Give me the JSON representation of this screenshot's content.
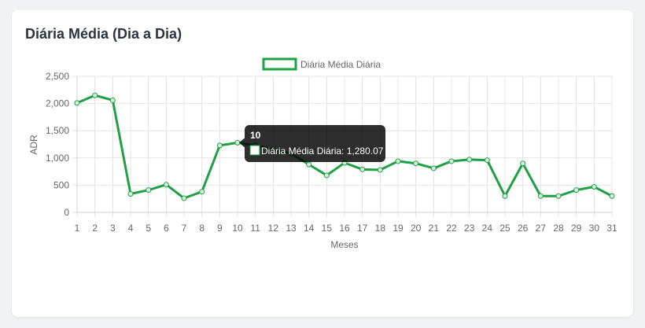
{
  "card": {
    "title": "Diária Média (Dia a Dia)"
  },
  "chart_data": {
    "type": "line",
    "legend": {
      "label": "Diária Média Diária",
      "position": "top"
    },
    "xlabel": "Meses",
    "ylabel": "ADR",
    "ylim": [
      0,
      2500
    ],
    "yticks": [
      0,
      500,
      1000,
      1500,
      2000,
      2500
    ],
    "ytick_labels": [
      "0",
      "500",
      "1,000",
      "1,500",
      "2,000",
      "2,500"
    ],
    "grid": true,
    "color": "#1fa045",
    "categories": [
      "1",
      "2",
      "3",
      "4",
      "5",
      "6",
      "7",
      "8",
      "9",
      "10",
      "11",
      "12",
      "13",
      "14",
      "15",
      "16",
      "17",
      "18",
      "19",
      "20",
      "21",
      "22",
      "23",
      "24",
      "25",
      "26",
      "27",
      "28",
      "29",
      "30",
      "31"
    ],
    "series": [
      {
        "name": "Diária Média Diária",
        "values": [
          2010,
          2150,
          2060,
          340,
          410,
          510,
          260,
          380,
          1230,
          1280.07,
          1230,
          1160,
          1080,
          880,
          680,
          910,
          790,
          780,
          940,
          900,
          810,
          940,
          970,
          960,
          300,
          900,
          300,
          300,
          410,
          470,
          300
        ]
      }
    ],
    "tooltip": {
      "title": "10",
      "body": "Diária Média Diária: 1,280.07",
      "index": 9
    }
  }
}
